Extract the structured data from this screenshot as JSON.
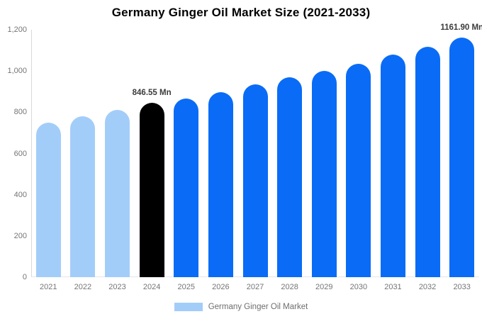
{
  "title": "Germany Ginger Oil Market Size (2021-2033)",
  "colors": {
    "historical_bar": "#a3cdf9",
    "highlight_bar": "#000000",
    "forecast_bar": "#0a6cf6",
    "axis_text": "#757575",
    "annotation_text": "#3c3c3c",
    "axis_line": "#d9d9d9",
    "background": "#ffffff"
  },
  "legend": {
    "label": "Germany Ginger Oil Market",
    "swatch_color": "#a3cdf9"
  },
  "chart_data": {
    "type": "bar",
    "title": "Germany Ginger Oil Market Size (2021-2033)",
    "categories": [
      "2021",
      "2022",
      "2023",
      "2024",
      "2025",
      "2026",
      "2027",
      "2028",
      "2029",
      "2030",
      "2031",
      "2032",
      "2033"
    ],
    "values": [
      750,
      780,
      812,
      846.55,
      868,
      898,
      934,
      970,
      1000,
      1036,
      1078,
      1118,
      1161.9
    ],
    "bar_colors": [
      "#a3cdf9",
      "#a3cdf9",
      "#a3cdf9",
      "#000000",
      "#0a6cf6",
      "#0a6cf6",
      "#0a6cf6",
      "#0a6cf6",
      "#0a6cf6",
      "#0a6cf6",
      "#0a6cf6",
      "#0a6cf6",
      "#0a6cf6"
    ],
    "annotations": [
      {
        "index": 3,
        "text": "846.55 Mn"
      },
      {
        "index": 12,
        "text": "1161.90 Mn"
      }
    ],
    "xlabel": "",
    "ylabel": "",
    "ylim": [
      0,
      1200
    ],
    "yticks": [
      0,
      200,
      400,
      600,
      800,
      1000,
      1200
    ],
    "ytick_labels": [
      "0",
      "200",
      "400",
      "600",
      "800",
      "1,000",
      "1,200"
    ],
    "grid": false,
    "legend_position": "bottom",
    "legend_entries": [
      "Germany Ginger Oil Market"
    ]
  }
}
